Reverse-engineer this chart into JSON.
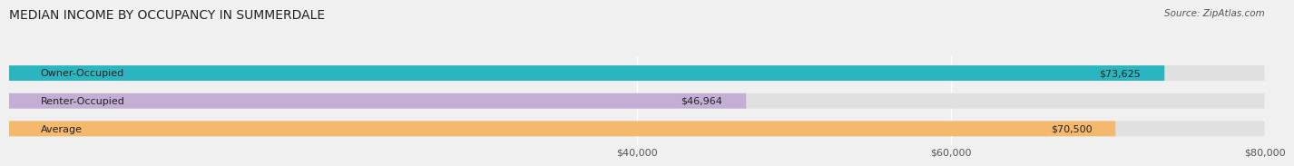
{
  "title": "MEDIAN INCOME BY OCCUPANCY IN SUMMERDALE",
  "source": "Source: ZipAtlas.com",
  "categories": [
    "Owner-Occupied",
    "Renter-Occupied",
    "Average"
  ],
  "values": [
    73625,
    46964,
    70500
  ],
  "bar_colors": [
    "#2ab5c0",
    "#c4afd4",
    "#f5b96e"
  ],
  "bar_labels": [
    "$73,625",
    "$46,964",
    "$70,500"
  ],
  "xlim": [
    0,
    80000
  ],
  "xticks": [
    40000,
    60000,
    80000
  ],
  "xtick_labels": [
    "$40,000",
    "$60,000",
    "$80,000"
  ],
  "background_color": "#f0f0f0",
  "bar_background_color": "#e0e0e0",
  "title_fontsize": 10,
  "source_fontsize": 7.5,
  "label_fontsize": 8,
  "tick_fontsize": 8
}
